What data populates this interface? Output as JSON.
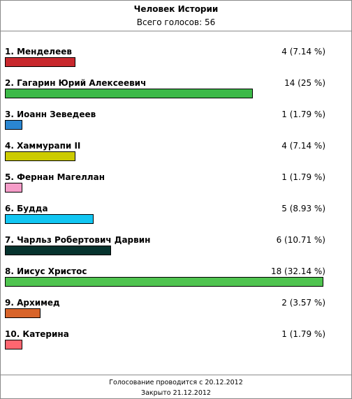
{
  "poll": {
    "title": "Человек Истории",
    "total_label": "Всего голосов:",
    "total_votes": "56"
  },
  "items": [
    {
      "label": "1. Менделеев",
      "result": "4 (7.14 %)",
      "votes": 4,
      "percent": 7.14,
      "color": "#c8282d"
    },
    {
      "label": "2. Гагарин Юрий Алексеевич",
      "result": "14 (25 %)",
      "votes": 14,
      "percent": 25,
      "color": "#3cb948"
    },
    {
      "label": "3. Иоанн Зеведеев",
      "result": "1 (1.79 %)",
      "votes": 1,
      "percent": 1.79,
      "color": "#2a86d1"
    },
    {
      "label": "4. Хаммурапи II",
      "result": "4 (7.14 %)",
      "votes": 4,
      "percent": 7.14,
      "color": "#cccb00"
    },
    {
      "label": "5. Фернан Магеллан",
      "result": "1 (1.79 %)",
      "votes": 1,
      "percent": 1.79,
      "color": "#f59cc8"
    },
    {
      "label": "6. Будда",
      "result": "5 (8.93 %)",
      "votes": 5,
      "percent": 8.93,
      "color": "#12c6f2"
    },
    {
      "label": "7. Чарльз Робертович Дарвин",
      "result": "6 (10.71 %)",
      "votes": 6,
      "percent": 10.71,
      "color": "#06332e"
    },
    {
      "label": "8. Иисус Христос",
      "result": "18 (32.14 %)",
      "votes": 18,
      "percent": 32.14,
      "color": "#4fc44f"
    },
    {
      "label": "9. Архимед",
      "result": "2 (3.57 %)",
      "votes": 2,
      "percent": 3.57,
      "color": "#d8642a"
    },
    {
      "label": "10. Катерина",
      "result": "1 (1.79 %)",
      "votes": 1,
      "percent": 1.79,
      "color": "#ff6670"
    }
  ],
  "footer": {
    "line1": "Голосование проводится с 20.12.2012",
    "line2": "Закрыто 21.12.2012"
  }
}
